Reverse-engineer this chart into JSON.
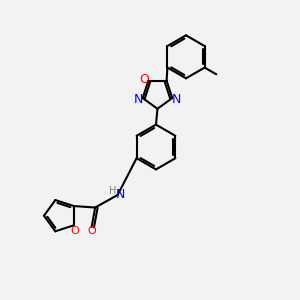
{
  "bg_color": "#f2f2f2",
  "atom_color_N": "#0000ff",
  "atom_color_O": "#ff0000",
  "atom_color_C": "#000000",
  "bond_color": "#000000",
  "bond_width": 1.5,
  "figsize": [
    3.0,
    3.0
  ],
  "dpi": 100,
  "xlim": [
    0,
    10
  ],
  "ylim": [
    0,
    10
  ]
}
